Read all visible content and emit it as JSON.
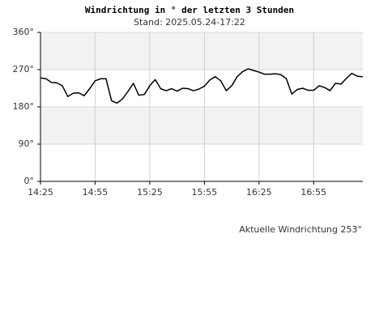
{
  "chart_data": {
    "type": "line",
    "title": "Windrichtung in ° der letzten 3 Stunden",
    "subtitle": "Stand: 2025.05.24-17:22",
    "annotation": "Aktuelle Windrichtung 253°",
    "x": [
      "14:25",
      "14:28",
      "14:31",
      "14:34",
      "14:37",
      "14:40",
      "14:43",
      "14:46",
      "14:49",
      "14:52",
      "14:55",
      "14:58",
      "15:01",
      "15:04",
      "15:07",
      "15:10",
      "15:13",
      "15:16",
      "15:19",
      "15:22",
      "15:25",
      "15:28",
      "15:31",
      "15:34",
      "15:37",
      "15:40",
      "15:43",
      "15:46",
      "15:49",
      "15:52",
      "15:55",
      "15:58",
      "16:01",
      "16:04",
      "16:07",
      "16:10",
      "16:13",
      "16:16",
      "16:19",
      "16:22",
      "16:25",
      "16:28",
      "16:31",
      "16:34",
      "16:37",
      "16:40",
      "16:43",
      "16:46",
      "16:49",
      "16:52",
      "16:55",
      "16:58",
      "17:01",
      "17:04",
      "17:07",
      "17:10",
      "17:13",
      "17:16",
      "17:19",
      "17:22"
    ],
    "series": [
      {
        "color": "#000000",
        "values": [
          250,
          248,
          239,
          238,
          231,
          205,
          213,
          214,
          207,
          224,
          243,
          248,
          248,
          195,
          189,
          199,
          217,
          237,
          208,
          210,
          231,
          246,
          224,
          219,
          224,
          218,
          225,
          224,
          219,
          223,
          230,
          245,
          253,
          243,
          219,
          231,
          253,
          265,
          272,
          268,
          264,
          259,
          259,
          260,
          258,
          248,
          211,
          222,
          225,
          220,
          220,
          231,
          227,
          219,
          237,
          235,
          249,
          261,
          254,
          253
        ]
      }
    ],
    "xlim": [
      "14:25",
      "17:22"
    ],
    "xticks": [
      "14:25",
      "14:55",
      "15:25",
      "15:55",
      "16:25",
      "16:55"
    ],
    "ylim": [
      0,
      360
    ],
    "yticks": [
      {
        "value": 0,
        "label": "0°"
      },
      {
        "value": 90,
        "label": "90°"
      },
      {
        "value": 180,
        "label": "180°"
      },
      {
        "value": 270,
        "label": "270°"
      },
      {
        "value": 360,
        "label": "360°"
      }
    ],
    "grid": true,
    "band_color": "#f2f2f2"
  }
}
